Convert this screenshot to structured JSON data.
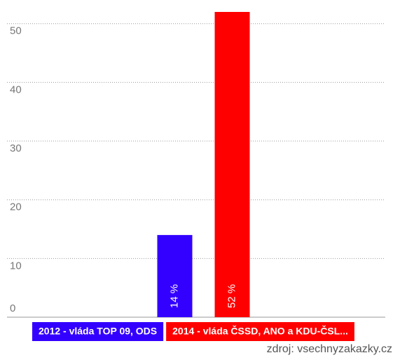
{
  "chart_data": {
    "type": "bar",
    "series": [
      {
        "name": "2012 - vláda TOP 09, ODS",
        "color": "#3300ff",
        "values": [
          14
        ],
        "value_labels": [
          "14 %"
        ]
      },
      {
        "name": "2014 - vláda ČSSD, ANO a KDU-ČSL...",
        "color": "#ff0000",
        "values": [
          52
        ],
        "value_labels": [
          "52 %"
        ]
      }
    ],
    "ylim": [
      0,
      52
    ],
    "yticks": [
      0,
      10,
      20,
      30,
      40,
      50
    ],
    "grid": true,
    "source": "zdroj: vsechnyzakazky.cz"
  }
}
